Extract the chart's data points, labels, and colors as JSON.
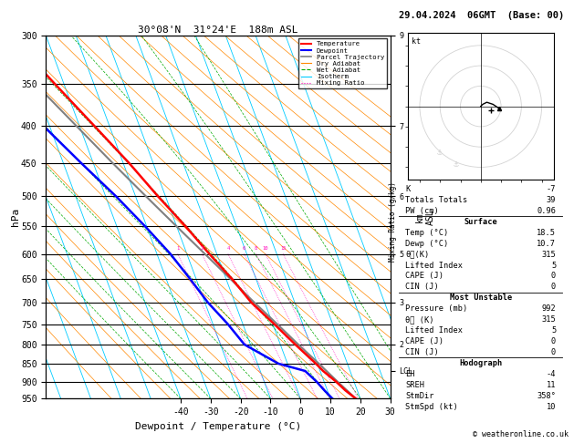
{
  "title_left": "30°08'N  31°24'E  188m ASL",
  "title_right": "29.04.2024  06GMT  (Base: 00)",
  "xlabel": "Dewpoint / Temperature (°C)",
  "ylabel_left": "hPa",
  "pressure_levels": [
    300,
    350,
    400,
    450,
    500,
    550,
    600,
    650,
    700,
    750,
    800,
    850,
    900,
    950
  ],
  "temp_ticks": [
    -40,
    -30,
    -20,
    -10,
    0,
    10,
    20,
    30
  ],
  "skew_factor": 45,
  "temperature_profile": {
    "pressure": [
      950,
      925,
      900,
      870,
      850,
      800,
      750,
      700,
      650,
      600,
      550,
      500,
      450,
      400,
      350,
      300
    ],
    "temp": [
      18.5,
      16.0,
      14.0,
      11.0,
      9.5,
      5.0,
      0.5,
      -4.5,
      -8.0,
      -12.5,
      -17.0,
      -22.5,
      -28.0,
      -35.0,
      -43.0,
      -52.0
    ]
  },
  "dewpoint_profile": {
    "pressure": [
      950,
      925,
      900,
      870,
      850,
      800,
      750,
      700,
      650,
      600,
      550,
      500,
      450,
      400,
      350,
      300
    ],
    "temp": [
      10.7,
      9.0,
      7.5,
      5.0,
      -3.0,
      -12.0,
      -15.0,
      -19.0,
      -22.0,
      -25.5,
      -30.5,
      -36.5,
      -44.0,
      -52.0,
      -60.0,
      -67.0
    ]
  },
  "parcel_profile": {
    "pressure": [
      950,
      900,
      850,
      800,
      750,
      700,
      650,
      600,
      550,
      500,
      450,
      400,
      350,
      300
    ],
    "temp": [
      18.5,
      14.5,
      10.5,
      6.0,
      1.5,
      -3.5,
      -8.5,
      -14.0,
      -20.0,
      -26.5,
      -33.5,
      -41.0,
      -49.5,
      -59.0
    ]
  },
  "mixing_ratios": [
    1,
    2,
    4,
    6,
    8,
    10,
    15,
    20,
    25
  ],
  "lcl_pressure": 870,
  "stats": {
    "K": -7,
    "Totals_Totals": 39,
    "PW_cm": 0.96,
    "Surface_Temp": 18.5,
    "Surface_Dewp": 10.7,
    "Surface_theta_e": 315,
    "Surface_LI": 5,
    "Surface_CAPE": 0,
    "Surface_CIN": 0,
    "MU_Pressure": 992,
    "MU_theta_e": 315,
    "MU_LI": 5,
    "MU_CAPE": 0,
    "MU_CIN": 0,
    "Hodo_EH": -4,
    "Hodo_SREH": 11,
    "Hodo_StmDir": 358,
    "Hodo_StmSpd": 10
  },
  "colors": {
    "temperature": "#ff0000",
    "dewpoint": "#0000ff",
    "parcel": "#808080",
    "isotherm": "#00ccff",
    "dry_adiabat": "#ff8800",
    "wet_adiabat": "#00aa00",
    "mixing_ratio": "#ff00bb",
    "background": "#ffffff",
    "grid": "#000000"
  }
}
